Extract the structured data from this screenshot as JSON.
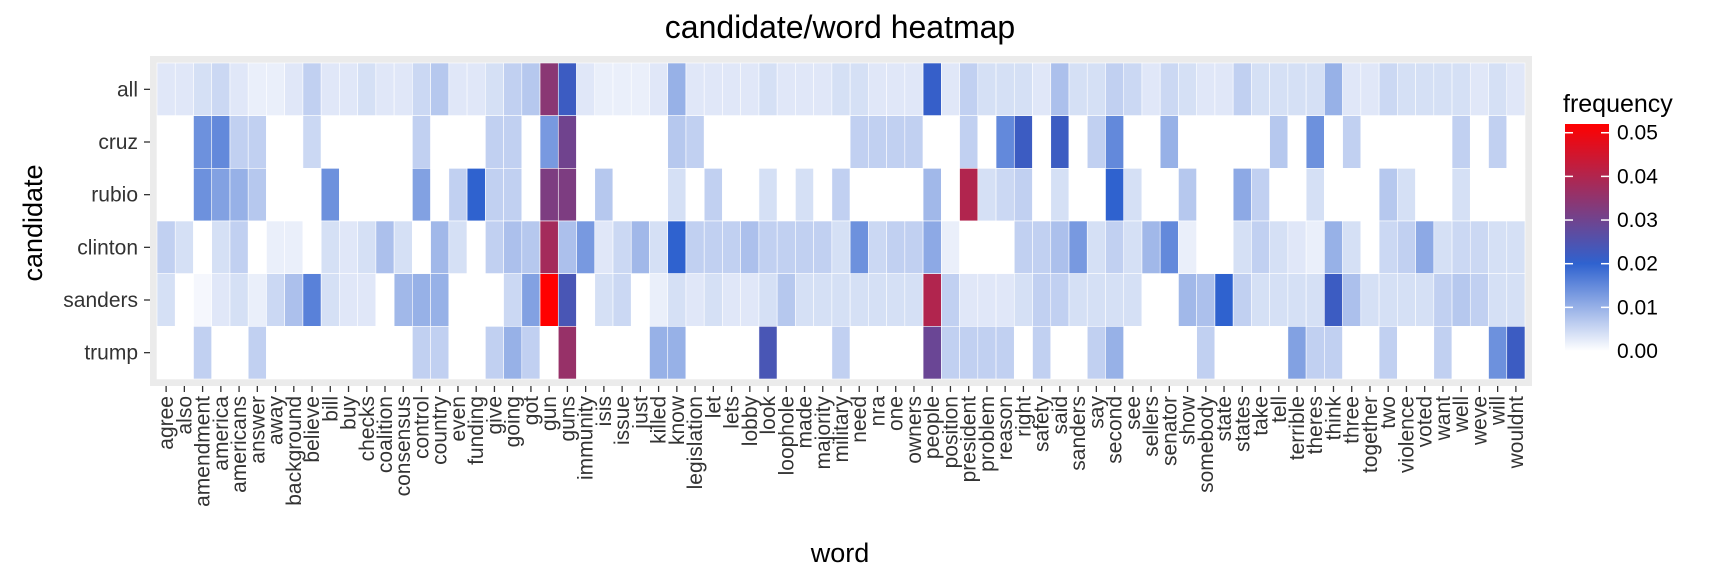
{
  "chart_data": {
    "type": "heatmap",
    "title": "candidate/word heatmap",
    "xlabel": "word",
    "ylabel": "candidate",
    "legend_title": "frequency",
    "legend_placement": "right",
    "grid": false,
    "color_scale": {
      "min": 0.0,
      "max": 0.052,
      "stops": [
        {
          "value": 0.0,
          "color": "#ffffff"
        },
        {
          "value": 0.02,
          "color": "#2f62cf"
        },
        {
          "value": 0.052,
          "color": "#ff0000"
        }
      ],
      "ticks": [
        {
          "value": 0.0,
          "label": "0.00"
        },
        {
          "value": 0.01,
          "label": "0.01"
        },
        {
          "value": 0.02,
          "label": "0.02"
        },
        {
          "value": 0.03,
          "label": "0.03"
        },
        {
          "value": 0.04,
          "label": "0.04"
        },
        {
          "value": 0.05,
          "label": "0.05"
        }
      ]
    },
    "y_categories": [
      "all",
      "cruz",
      "rubio",
      "clinton",
      "sanders",
      "trump"
    ],
    "x_categories": [
      "agree",
      "also",
      "amendment",
      "america",
      "americans",
      "answer",
      "away",
      "background",
      "believe",
      "bill",
      "buy",
      "checks",
      "coalition",
      "consensus",
      "control",
      "country",
      "even",
      "funding",
      "give",
      "going",
      "got",
      "gun",
      "guns",
      "immunity",
      "isis",
      "issue",
      "just",
      "killed",
      "know",
      "legislation",
      "let",
      "lets",
      "lobby",
      "look",
      "loophole",
      "made",
      "majority",
      "military",
      "need",
      "nra",
      "one",
      "owners",
      "people",
      "position",
      "president",
      "problem",
      "reason",
      "right",
      "safety",
      "said",
      "sanders",
      "say",
      "second",
      "see",
      "sellers",
      "senator",
      "show",
      "somebody",
      "state",
      "states",
      "take",
      "tell",
      "terrible",
      "theres",
      "think",
      "three",
      "together",
      "two",
      "violence",
      "voted",
      "want",
      "well",
      "weve",
      "will",
      "wouldnt"
    ],
    "values": [
      [
        0.003,
        0.003,
        0.004,
        0.005,
        0.003,
        0.002,
        0.002,
        0.003,
        0.006,
        0.003,
        0.003,
        0.004,
        0.003,
        0.003,
        0.005,
        0.007,
        0.003,
        0.003,
        0.004,
        0.006,
        0.007,
        0.034,
        0.022,
        0.003,
        0.002,
        0.002,
        0.002,
        0.003,
        0.01,
        0.003,
        0.003,
        0.003,
        0.003,
        0.004,
        0.003,
        0.003,
        0.003,
        0.004,
        0.004,
        0.003,
        0.003,
        0.003,
        0.021,
        0.003,
        0.006,
        0.004,
        0.004,
        0.004,
        0.003,
        0.008,
        0.004,
        0.004,
        0.006,
        0.005,
        0.003,
        0.005,
        0.004,
        0.003,
        0.003,
        0.006,
        0.004,
        0.004,
        0.004,
        0.004,
        0.01,
        0.003,
        0.003,
        0.005,
        0.004,
        0.004,
        0.004,
        0.004,
        0.003,
        0.004,
        0.003
      ],
      [
        0,
        0,
        0.014,
        0.015,
        0.006,
        0.006,
        0,
        0,
        0.005,
        0,
        0,
        0,
        0,
        0,
        0.006,
        0,
        0,
        0,
        0.006,
        0.006,
        0,
        0.013,
        0.03,
        0,
        0,
        0,
        0,
        0,
        0.007,
        0.006,
        0,
        0,
        0,
        0,
        0,
        0,
        0,
        0,
        0.006,
        0.006,
        0.006,
        0.006,
        0,
        0,
        0.006,
        0,
        0.015,
        0.022,
        0,
        0.022,
        0,
        0.006,
        0.015,
        0,
        0,
        0.01,
        0,
        0,
        0,
        0,
        0,
        0.007,
        0,
        0.014,
        0,
        0.006,
        0,
        0,
        0,
        0,
        0,
        0.006,
        0,
        0.006,
        0
      ],
      [
        0,
        0,
        0.014,
        0.012,
        0.01,
        0.007,
        0,
        0,
        0,
        0.014,
        0,
        0,
        0,
        0,
        0.012,
        0,
        0.006,
        0.02,
        0.006,
        0.006,
        0,
        0.032,
        0.032,
        0,
        0.007,
        0,
        0,
        0,
        0.004,
        0,
        0.006,
        0,
        0,
        0.004,
        0,
        0.004,
        0,
        0.006,
        0,
        0,
        0,
        0,
        0.009,
        0,
        0.04,
        0.004,
        0.005,
        0.006,
        0,
        0.004,
        0,
        0,
        0.02,
        0.004,
        0,
        0,
        0.007,
        0,
        0,
        0.011,
        0.006,
        0,
        0,
        0.004,
        0,
        0,
        0,
        0.007,
        0.004,
        0,
        0,
        0.004,
        0,
        0,
        0
      ],
      [
        0.006,
        0.004,
        0,
        0.004,
        0.006,
        0,
        0.002,
        0.002,
        0,
        0.004,
        0.003,
        0.004,
        0.008,
        0.004,
        0,
        0.009,
        0.004,
        0,
        0.006,
        0.008,
        0.007,
        0.038,
        0.008,
        0.013,
        0.003,
        0.005,
        0.009,
        0.004,
        0.02,
        0.006,
        0.006,
        0.006,
        0.008,
        0.006,
        0.006,
        0.006,
        0.006,
        0.004,
        0.014,
        0.005,
        0.006,
        0.006,
        0.011,
        0.002,
        0,
        0,
        0,
        0.006,
        0.006,
        0.008,
        0.013,
        0.004,
        0.006,
        0.004,
        0.009,
        0.015,
        0.002,
        0,
        0,
        0.004,
        0.006,
        0.004,
        0.003,
        0.002,
        0.01,
        0.004,
        0,
        0.005,
        0.006,
        0.011,
        0.004,
        0.005,
        0.005,
        0.004,
        0.004
      ],
      [
        0.004,
        0,
        0.001,
        0.003,
        0.004,
        0.002,
        0.005,
        0.008,
        0.016,
        0.004,
        0.003,
        0.003,
        0,
        0.009,
        0.01,
        0.01,
        0,
        0,
        0,
        0.005,
        0.012,
        0.052,
        0.024,
        0,
        0.004,
        0.005,
        0,
        0.002,
        0.004,
        0.003,
        0.004,
        0.003,
        0.003,
        0.004,
        0.007,
        0.004,
        0.004,
        0.004,
        0.004,
        0.004,
        0.004,
        0.004,
        0.04,
        0.006,
        0.003,
        0.003,
        0.003,
        0.004,
        0.006,
        0.006,
        0.004,
        0.004,
        0.004,
        0.004,
        0,
        0,
        0.009,
        0.008,
        0.02,
        0.006,
        0.004,
        0.004,
        0.004,
        0.004,
        0.022,
        0.008,
        0.004,
        0.004,
        0.004,
        0.004,
        0.006,
        0.007,
        0.006,
        0.004,
        0.004
      ],
      [
        0,
        0,
        0.006,
        0,
        0,
        0.006,
        0,
        0,
        0,
        0,
        0,
        0,
        0,
        0,
        0.006,
        0.006,
        0,
        0,
        0.006,
        0.01,
        0.006,
        0,
        0.036,
        0,
        0,
        0,
        0,
        0.01,
        0.01,
        0,
        0,
        0,
        0,
        0.024,
        0,
        0,
        0,
        0.006,
        0,
        0,
        0,
        0,
        0.029,
        0.006,
        0.006,
        0.006,
        0.006,
        0,
        0.006,
        0,
        0,
        0.006,
        0.01,
        0,
        0,
        0,
        0,
        0.006,
        0,
        0,
        0,
        0,
        0.012,
        0.006,
        0.006,
        0,
        0,
        0.006,
        0,
        0,
        0.006,
        0,
        0,
        0.014,
        0.022
      ]
    ]
  }
}
